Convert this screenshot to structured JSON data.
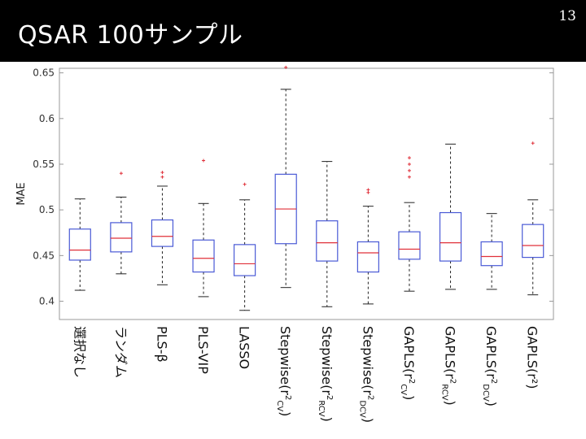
{
  "slide": {
    "title": "QSAR 100サンプル",
    "page_number": "13"
  },
  "colors": {
    "box": "#4a5ad6",
    "median": "#e0303a",
    "whisker": "#222222",
    "outlier": "#e0303a",
    "grid": "#dddddd",
    "axis": "#999999"
  },
  "chart_data": {
    "type": "boxplot",
    "title": "",
    "xlabel": "",
    "ylabel": "MAE",
    "ylim": [
      0.38,
      0.655
    ],
    "yticks": [
      0.4,
      0.45,
      0.5,
      0.55,
      0.6,
      0.65
    ],
    "ytick_labels": [
      "0.4",
      "0.45",
      "0.5",
      "0.55",
      "0.6",
      "0.65"
    ],
    "grid": false,
    "boxes": [
      {
        "label": "選択なし",
        "label_parts": [
          {
            "t": "選択なし"
          }
        ],
        "whisker_low": 0.412,
        "q1": 0.445,
        "median": 0.456,
        "q3": 0.479,
        "whisker_high": 0.512,
        "outliers": []
      },
      {
        "label": "ランダム",
        "label_parts": [
          {
            "t": "ランダム"
          }
        ],
        "whisker_low": 0.43,
        "q1": 0.454,
        "median": 0.469,
        "q3": 0.486,
        "whisker_high": 0.514,
        "outliers": [
          0.54
        ]
      },
      {
        "label": "PLS-β",
        "label_parts": [
          {
            "t": "PLS-β"
          }
        ],
        "whisker_low": 0.418,
        "q1": 0.46,
        "median": 0.471,
        "q3": 0.489,
        "whisker_high": 0.526,
        "outliers": [
          0.536,
          0.541
        ]
      },
      {
        "label": "PLS-VIP",
        "label_parts": [
          {
            "t": "PLS-VIP"
          }
        ],
        "whisker_low": 0.405,
        "q1": 0.432,
        "median": 0.447,
        "q3": 0.467,
        "whisker_high": 0.507,
        "outliers": [
          0.554
        ]
      },
      {
        "label": "LASSO",
        "label_parts": [
          {
            "t": "LASSO"
          }
        ],
        "whisker_low": 0.39,
        "q1": 0.428,
        "median": 0.441,
        "q3": 0.462,
        "whisker_high": 0.511,
        "outliers": [
          0.528
        ]
      },
      {
        "label": "Stepwise(r2CV)",
        "label_parts": [
          {
            "t": "Stepwise(r"
          },
          {
            "t": "2",
            "sup": true
          },
          {
            "t": "CV",
            "sub": true
          },
          {
            "t": ")"
          }
        ],
        "whisker_low": 0.415,
        "q1": 0.463,
        "median": 0.501,
        "q3": 0.539,
        "whisker_high": 0.632,
        "outliers": [
          0.656
        ]
      },
      {
        "label": "Stepwise(r2RCV)",
        "label_parts": [
          {
            "t": "Stepwise(r"
          },
          {
            "t": "2",
            "sup": true
          },
          {
            "t": "RCV",
            "sub": true
          },
          {
            "t": ")"
          }
        ],
        "whisker_low": 0.394,
        "q1": 0.444,
        "median": 0.464,
        "q3": 0.488,
        "whisker_high": 0.553,
        "outliers": []
      },
      {
        "label": "Stepwise(r2DCV)",
        "label_parts": [
          {
            "t": "Stepwise(r"
          },
          {
            "t": "2",
            "sup": true
          },
          {
            "t": "DCV",
            "sub": true
          },
          {
            "t": ")"
          }
        ],
        "whisker_low": 0.397,
        "q1": 0.432,
        "median": 0.453,
        "q3": 0.465,
        "whisker_high": 0.504,
        "outliers": [
          0.519,
          0.522
        ]
      },
      {
        "label": "GAPLS(r2CV)",
        "label_parts": [
          {
            "t": "GAPLS(r"
          },
          {
            "t": "2",
            "sup": true
          },
          {
            "t": "CV",
            "sub": true
          },
          {
            "t": ")"
          }
        ],
        "whisker_low": 0.411,
        "q1": 0.446,
        "median": 0.457,
        "q3": 0.476,
        "whisker_high": 0.508,
        "outliers": [
          0.536,
          0.543,
          0.55,
          0.557
        ]
      },
      {
        "label": "GAPLS(r2RCV)",
        "label_parts": [
          {
            "t": "GAPLS(r"
          },
          {
            "t": "2",
            "sup": true
          },
          {
            "t": "RCV",
            "sub": true
          },
          {
            "t": ")"
          }
        ],
        "whisker_low": 0.413,
        "q1": 0.444,
        "median": 0.464,
        "q3": 0.497,
        "whisker_high": 0.572,
        "outliers": []
      },
      {
        "label": "GAPLS(r2DCV)",
        "label_parts": [
          {
            "t": "GAPLS(r"
          },
          {
            "t": "2",
            "sup": true
          },
          {
            "t": "DCV",
            "sub": true
          },
          {
            "t": ")"
          }
        ],
        "whisker_low": 0.413,
        "q1": 0.439,
        "median": 0.449,
        "q3": 0.465,
        "whisker_high": 0.496,
        "outliers": []
      },
      {
        "label": "GAPLS(r²)",
        "label_parts": [
          {
            "t": "GAPLS(r²)"
          }
        ],
        "whisker_low": 0.407,
        "q1": 0.448,
        "median": 0.461,
        "q3": 0.484,
        "whisker_high": 0.511,
        "outliers": [
          0.573
        ]
      }
    ]
  }
}
